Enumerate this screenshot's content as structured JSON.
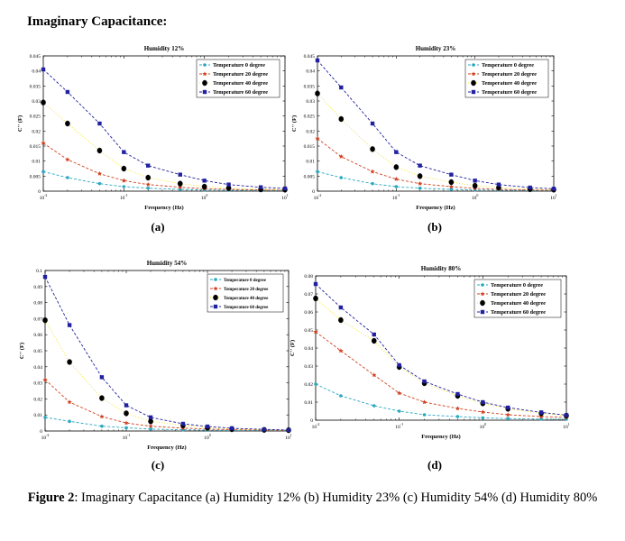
{
  "heading": "Imaginary Capacitance:",
  "caption": {
    "label": "Figure 2",
    "text": ": Imaginary Capacitance (a) Humidity 12% (b) Humidity 23% (c) Humidity 54% (d) Humidity 80%"
  },
  "legend_entries": [
    "Temperature 0 degree",
    "Temperature 20 degree",
    "Temperature 40 degree",
    "Temperature 60 degree"
  ],
  "series_colors": [
    "#2aa8c0",
    "#d04020",
    "#f0e020",
    "#2020a0"
  ],
  "chart_data": [
    {
      "type": "line",
      "panel_label": "(a)",
      "title": "Humidity 12%",
      "xlabel": "Frequency (Hz)",
      "ylabel": "C'' (F)",
      "xscale": "log",
      "xlim": [
        0.01,
        10
      ],
      "ylim": [
        0,
        0.045
      ],
      "yticks": [
        "0",
        "0.005",
        "0.01",
        "0.015",
        "0.02",
        "0.025",
        "0.03",
        "0.035",
        "0.04",
        "0.045"
      ],
      "legend_position": "top-right",
      "x": [
        0.01,
        0.02,
        0.05,
        0.1,
        0.2,
        0.5,
        1,
        2,
        5,
        10
      ],
      "series": [
        {
          "name": "Temperature 0 degree",
          "values": [
            0.0065,
            0.0045,
            0.0025,
            0.0015,
            0.001,
            0.0006,
            0.0004,
            0.0003,
            0.0002,
            0.0002
          ]
        },
        {
          "name": "Temperature 20 degree",
          "values": [
            0.016,
            0.0105,
            0.0058,
            0.0035,
            0.0022,
            0.0013,
            0.0008,
            0.0006,
            0.0004,
            0.0003
          ]
        },
        {
          "name": "Temperature 40 degree",
          "values": [
            0.0295,
            0.0225,
            0.0135,
            0.0075,
            0.0045,
            0.0025,
            0.0015,
            0.001,
            0.0006,
            0.0005
          ]
        },
        {
          "name": "Temperature 60 degree",
          "values": [
            0.0405,
            0.033,
            0.0225,
            0.013,
            0.0085,
            0.0055,
            0.0035,
            0.0022,
            0.0013,
            0.0009
          ]
        }
      ]
    },
    {
      "type": "line",
      "panel_label": "(b)",
      "title": "Humidity 23%",
      "xlabel": "Frequency (Hz)",
      "ylabel": "C'' (F)",
      "xscale": "log",
      "xlim": [
        0.01,
        10
      ],
      "ylim": [
        0,
        0.045
      ],
      "yticks": [
        "0",
        "0.005",
        "0.01",
        "0.015",
        "0.02",
        "0.025",
        "0.03",
        "0.035",
        "0.04",
        "0.045"
      ],
      "legend_position": "top-right",
      "x": [
        0.01,
        0.02,
        0.05,
        0.1,
        0.2,
        0.5,
        1,
        2,
        5,
        10
      ],
      "series": [
        {
          "name": "Temperature 0 degree",
          "values": [
            0.0065,
            0.0045,
            0.0025,
            0.0015,
            0.001,
            0.0006,
            0.0004,
            0.0003,
            0.0002,
            0.0002
          ]
        },
        {
          "name": "Temperature 20 degree",
          "values": [
            0.0175,
            0.0115,
            0.0065,
            0.004,
            0.0025,
            0.0015,
            0.0009,
            0.0006,
            0.0004,
            0.0003
          ]
        },
        {
          "name": "Temperature 40 degree",
          "values": [
            0.0325,
            0.024,
            0.014,
            0.008,
            0.005,
            0.003,
            0.0018,
            0.0012,
            0.0007,
            0.0005
          ]
        },
        {
          "name": "Temperature 60 degree",
          "values": [
            0.0435,
            0.0345,
            0.0225,
            0.013,
            0.0085,
            0.0055,
            0.0035,
            0.0022,
            0.0012,
            0.0008
          ]
        }
      ]
    },
    {
      "type": "line",
      "panel_label": "(c)",
      "title": "Humidity 54%",
      "xlabel": "Frequency (Hz)",
      "ylabel": "C'' (F)",
      "xscale": "log",
      "xlim": [
        0.01,
        10
      ],
      "ylim": [
        0,
        0.1
      ],
      "yticks": [
        "0",
        "0.01",
        "0.02",
        "0.03",
        "0.04",
        "0.05",
        "0.06",
        "0.07",
        "0.08",
        "0.09",
        "0.1"
      ],
      "legend_position": "top-right",
      "x": [
        0.01,
        0.02,
        0.05,
        0.1,
        0.2,
        0.5,
        1,
        2,
        5,
        10
      ],
      "series": [
        {
          "name": "Temperature 0 degree",
          "values": [
            0.0085,
            0.006,
            0.003,
            0.002,
            0.0012,
            0.0008,
            0.0005,
            0.0003,
            0.0002,
            0.0002
          ]
        },
        {
          "name": "Temperature 20 degree",
          "values": [
            0.032,
            0.018,
            0.009,
            0.005,
            0.003,
            0.0018,
            0.0012,
            0.0008,
            0.0005,
            0.0003
          ]
        },
        {
          "name": "Temperature 40 degree",
          "values": [
            0.069,
            0.043,
            0.0205,
            0.011,
            0.006,
            0.0035,
            0.002,
            0.0012,
            0.0007,
            0.0005
          ]
        },
        {
          "name": "Temperature 60 degree",
          "values": [
            0.096,
            0.066,
            0.0335,
            0.016,
            0.0085,
            0.0045,
            0.0028,
            0.0017,
            0.001,
            0.0006
          ]
        }
      ]
    },
    {
      "type": "line",
      "panel_label": "(d)",
      "title": "Humidity 80%",
      "xlabel": "Frequency (Hz)",
      "ylabel": "C'' (F)",
      "xscale": "log",
      "xlim": [
        0.01,
        10
      ],
      "ylim": [
        0,
        0.08
      ],
      "yticks": [
        "0",
        "0.01",
        "0.02",
        "0.03",
        "0.04",
        "0.05",
        "0.06",
        "0.07",
        "0.08"
      ],
      "legend_position": "top-right",
      "x": [
        0.01,
        0.02,
        0.05,
        0.1,
        0.2,
        0.5,
        1,
        2,
        5,
        10
      ],
      "series": [
        {
          "name": "Temperature 0 degree",
          "values": [
            0.02,
            0.0135,
            0.008,
            0.005,
            0.003,
            0.002,
            0.0013,
            0.0009,
            0.0006,
            0.0005
          ]
        },
        {
          "name": "Temperature 20 degree",
          "values": [
            0.049,
            0.0385,
            0.025,
            0.015,
            0.01,
            0.0065,
            0.0045,
            0.003,
            0.002,
            0.0015
          ]
        },
        {
          "name": "Temperature 40 degree",
          "values": [
            0.0675,
            0.0555,
            0.044,
            0.0295,
            0.0205,
            0.0135,
            0.0093,
            0.0063,
            0.0038,
            0.0025
          ]
        },
        {
          "name": "Temperature 60 degree",
          "values": [
            0.0755,
            0.0625,
            0.0475,
            0.0305,
            0.0215,
            0.0145,
            0.01,
            0.007,
            0.0043,
            0.0028
          ]
        }
      ]
    }
  ]
}
